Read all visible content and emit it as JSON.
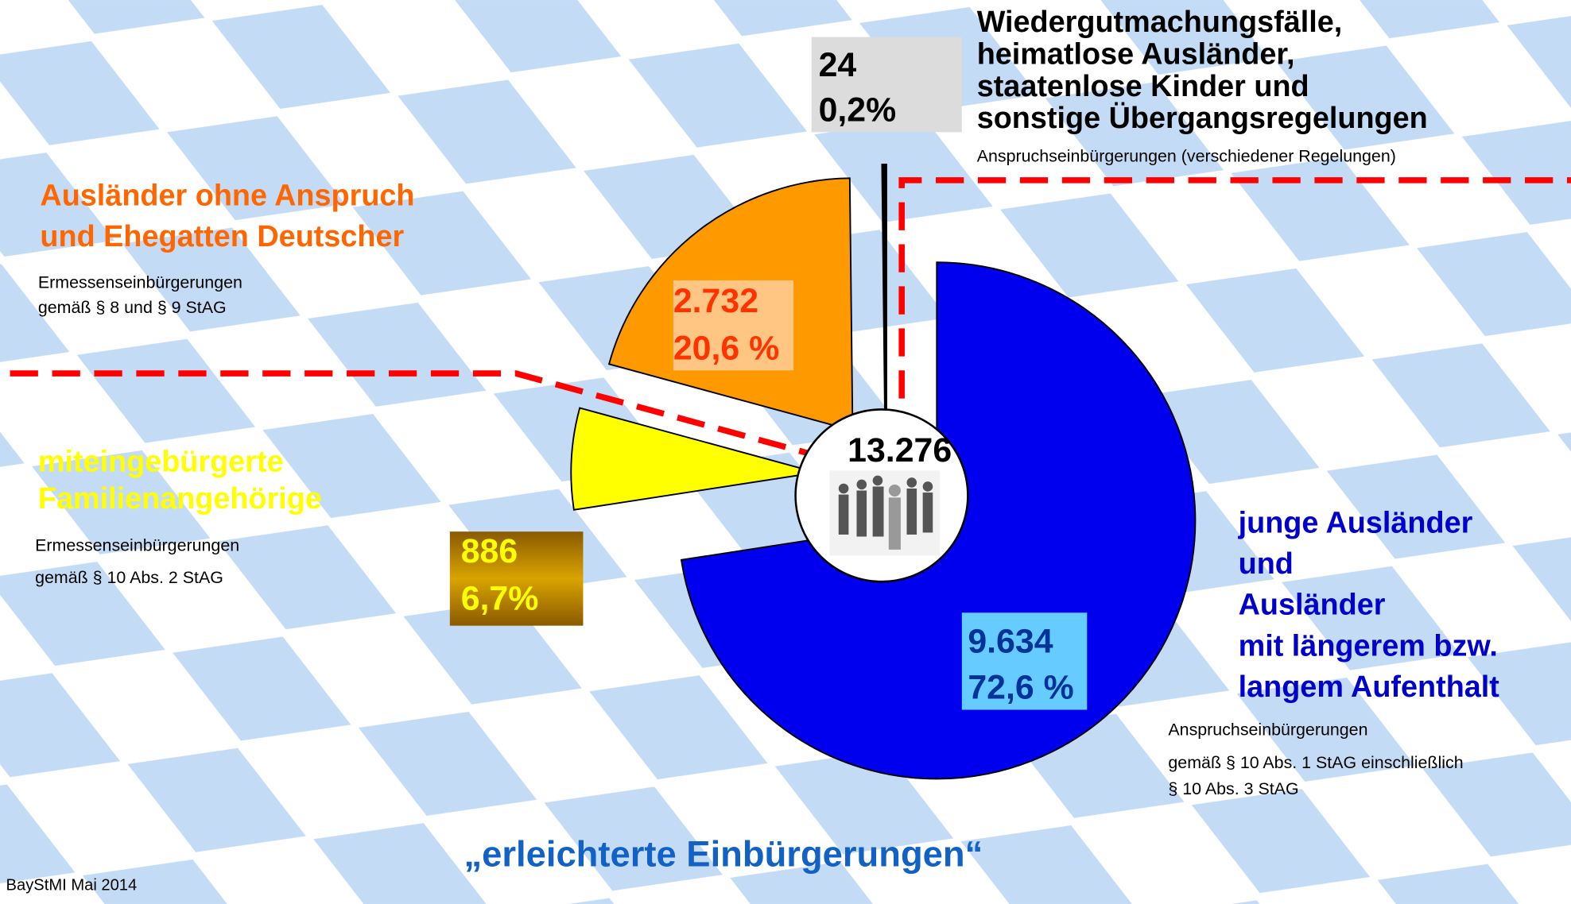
{
  "chart_data": {
    "type": "pie",
    "title": "„erleichterte Einbürgerungen“",
    "source": "BayStMI Mai 2014",
    "total": {
      "value": 13276,
      "label": "13.276"
    },
    "slices": [
      {
        "name": [
          "junge Ausländer",
          "und",
          "Ausländer",
          "mit längerem bzw.",
          "langem Aufenthalt"
        ],
        "description": [
          "Anspruchseinbürgerungen",
          "gemäß § 10 Abs. 1 StAG einschließlich",
          "§ 10 Abs. 3 StAG"
        ],
        "value": 9634,
        "value_label": "9.634",
        "percent": 72.6,
        "percent_label": "72,6 %",
        "color": "#0000ee"
      },
      {
        "name": [
          "miteingebürgerte",
          "Familienangehörige"
        ],
        "description": [
          "Ermessenseinbürgerungen",
          "gemäß § 10 Abs. 2 StAG"
        ],
        "value": 886,
        "value_label": "886",
        "percent": 6.7,
        "percent_label": "6,7%",
        "color": "#ffff00"
      },
      {
        "name": [
          "Ausländer ohne Anspruch",
          "und Ehegatten Deutscher"
        ],
        "description": [
          "Ermessenseinbürgerungen",
          "gemäß § 8 und § 9 StAG"
        ],
        "value": 2732,
        "value_label": "2.732",
        "percent": 20.6,
        "percent_label": "20,6 %",
        "color": "#ff9900"
      },
      {
        "name": [
          "Wiedergutmachungsfälle,",
          "heimatlose Ausländer,",
          "staatenlose Kinder und",
          "sonstige Übergangsregelungen"
        ],
        "description": [
          "Anspruchseinbürgerungen (verschiedener Regelungen)"
        ],
        "value": 24,
        "value_label": "24",
        "percent": 0.2,
        "percent_label": "0,2%",
        "color": "#ffffff"
      }
    ]
  }
}
